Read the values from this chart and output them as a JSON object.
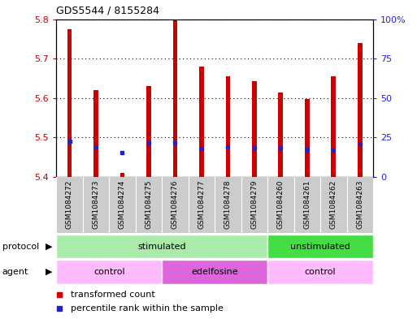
{
  "title": "GDS5544 / 8155284",
  "samples": [
    "GSM1084272",
    "GSM1084273",
    "GSM1084274",
    "GSM1084275",
    "GSM1084276",
    "GSM1084277",
    "GSM1084278",
    "GSM1084279",
    "GSM1084260",
    "GSM1084261",
    "GSM1084262",
    "GSM1084263"
  ],
  "bar_values": [
    5.775,
    5.62,
    5.41,
    5.63,
    5.8,
    5.68,
    5.655,
    5.643,
    5.615,
    5.597,
    5.655,
    5.74
  ],
  "percentile_values": [
    5.49,
    5.477,
    5.462,
    5.487,
    5.487,
    5.472,
    5.477,
    5.475,
    5.474,
    5.47,
    5.468,
    5.485
  ],
  "bar_bottom": 5.4,
  "ylim": [
    5.4,
    5.8
  ],
  "yticks_left": [
    5.4,
    5.5,
    5.6,
    5.7,
    5.8
  ],
  "yticks_right_vals": [
    0,
    25,
    50,
    75,
    100
  ],
  "yticks_right_labels": [
    "0",
    "25",
    "50",
    "75",
    "100%"
  ],
  "bar_color": "#cc0000",
  "percentile_color": "#2222cc",
  "grid_color": "#000000",
  "tick_bg_color": "#cccccc",
  "tick_sep_color": "#ffffff",
  "protocol_groups": [
    {
      "label": "stimulated",
      "start": 0,
      "end": 7,
      "color": "#aaeaaa"
    },
    {
      "label": "unstimulated",
      "start": 8,
      "end": 11,
      "color": "#44dd44"
    }
  ],
  "agent_groups": [
    {
      "label": "control",
      "start": 0,
      "end": 3,
      "color": "#ffbbff"
    },
    {
      "label": "edelfosine",
      "start": 4,
      "end": 7,
      "color": "#dd66dd"
    },
    {
      "label": "control",
      "start": 8,
      "end": 11,
      "color": "#ffbbff"
    }
  ],
  "legend_items": [
    {
      "label": "transformed count",
      "color": "#cc0000"
    },
    {
      "label": "percentile rank within the sample",
      "color": "#2222cc"
    }
  ],
  "protocol_label": "protocol",
  "agent_label": "agent",
  "bar_width": 0.18
}
